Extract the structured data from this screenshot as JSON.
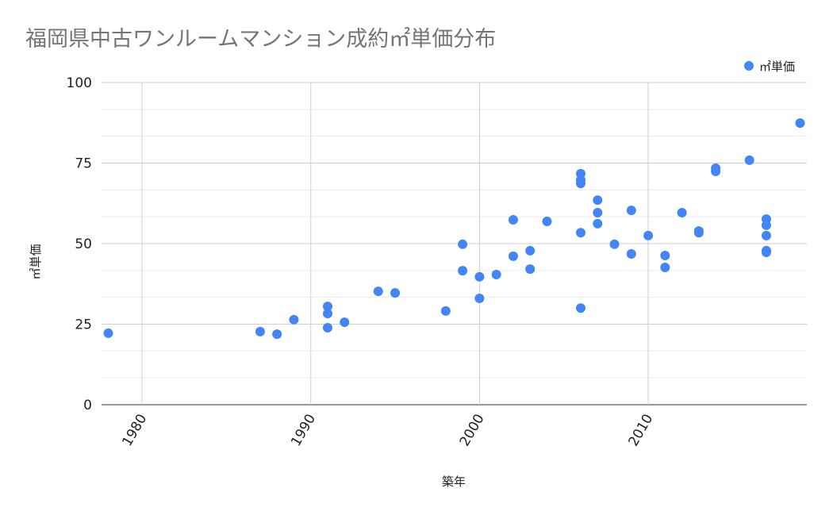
{
  "chart_data": {
    "type": "scatter",
    "title": "福岡県中古ワンルームマンション成約㎡単価分布",
    "xlabel": "築年",
    "ylabel": "㎡単価",
    "xlim": [
      1977.6,
      2019.4
    ],
    "ylim": [
      0,
      100
    ],
    "xticks": [
      1980,
      1990,
      2000,
      2010
    ],
    "yticks": [
      0,
      25,
      50,
      75,
      100
    ],
    "grid": true,
    "legend_position": "top-right",
    "series": [
      {
        "name": "㎡単価",
        "color": "#4285f4",
        "points": [
          [
            1978,
            22.2
          ],
          [
            1987,
            22.7
          ],
          [
            1988,
            21.9
          ],
          [
            1989,
            26.4
          ],
          [
            1991,
            30.5
          ],
          [
            1991,
            28.3
          ],
          [
            1991,
            23.9
          ],
          [
            1992,
            25.6
          ],
          [
            1994,
            35.2
          ],
          [
            1995,
            34.7
          ],
          [
            1998,
            29.1
          ],
          [
            1999,
            49.8
          ],
          [
            1999,
            41.6
          ],
          [
            2000,
            39.7
          ],
          [
            2000,
            33.0
          ],
          [
            2001,
            40.4
          ],
          [
            2002,
            57.4
          ],
          [
            2002,
            46.1
          ],
          [
            2003,
            47.8
          ],
          [
            2003,
            42.1
          ],
          [
            2004,
            56.9
          ],
          [
            2006,
            71.7
          ],
          [
            2006,
            69.7
          ],
          [
            2006,
            68.7
          ],
          [
            2006,
            53.4
          ],
          [
            2006,
            30.0
          ],
          [
            2007,
            63.5
          ],
          [
            2007,
            59.6
          ],
          [
            2007,
            56.2
          ],
          [
            2008,
            49.8
          ],
          [
            2009,
            60.3
          ],
          [
            2009,
            46.8
          ],
          [
            2010,
            52.5
          ],
          [
            2011,
            46.3
          ],
          [
            2011,
            42.6
          ],
          [
            2012,
            59.6
          ],
          [
            2013,
            53.9
          ],
          [
            2013,
            53.4
          ],
          [
            2014,
            73.4
          ],
          [
            2014,
            72.4
          ],
          [
            2016,
            75.9
          ],
          [
            2017,
            57.6
          ],
          [
            2017,
            55.7
          ],
          [
            2017,
            52.5
          ],
          [
            2017,
            47.8
          ],
          [
            2017,
            47.3
          ],
          [
            2019,
            87.4
          ]
        ]
      }
    ]
  }
}
